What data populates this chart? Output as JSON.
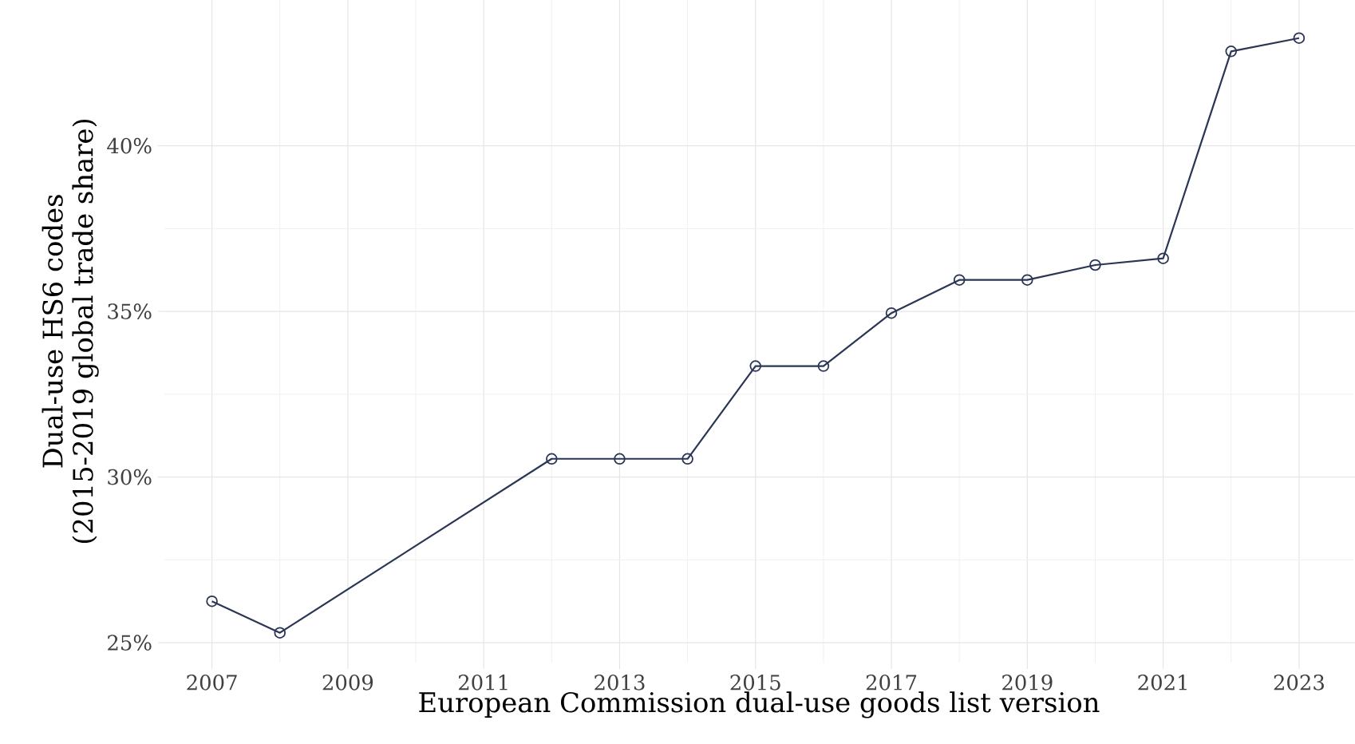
{
  "chart_data": {
    "type": "line",
    "xlabel": "European Commission dual-use goods list version",
    "ylabel": "Dual-use HS6 codes\n(2015-2019 global trade share)",
    "x": [
      2007,
      2008,
      2012,
      2013,
      2014,
      2015,
      2016,
      2017,
      2018,
      2019,
      2020,
      2021,
      2022,
      2023
    ],
    "series": [
      {
        "color": "#2b3654",
        "values": [
          26.25,
          25.3,
          30.55,
          30.55,
          30.55,
          33.35,
          33.35,
          34.95,
          35.95,
          35.95,
          36.4,
          36.6,
          42.85,
          43.25
        ]
      }
    ],
    "xlim": [
      2006.3,
      2023.8
    ],
    "ylim": [
      24.4,
      44.4
    ],
    "xticks": [
      2007,
      2009,
      2011,
      2013,
      2015,
      2017,
      2019,
      2021,
      2023
    ],
    "yticks": [
      {
        "value": 25,
        "label": "25%"
      },
      {
        "value": 30,
        "label": "30%"
      },
      {
        "value": 35,
        "label": "35%"
      },
      {
        "value": 40,
        "label": "40%"
      }
    ],
    "grid": true,
    "marker": "circle",
    "line_style": "solid"
  }
}
